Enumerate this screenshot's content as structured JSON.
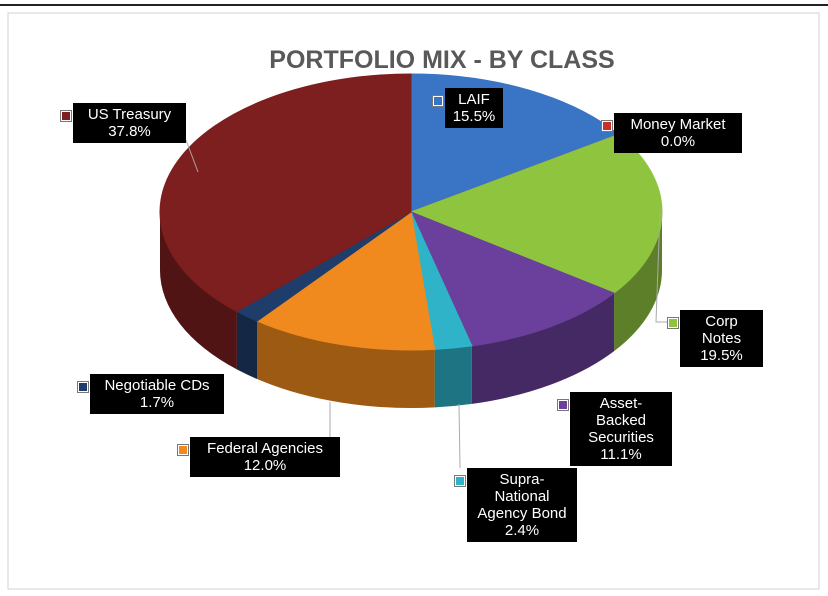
{
  "chart_data": {
    "type": "pie",
    "title": "PORTFOLIO MIX - BY CLASS",
    "categories": [
      "LAIF",
      "Money Market",
      "Corp Notes",
      "Asset-Backed Securities",
      "Supra-National Agency Bond",
      "Federal Agencies",
      "Negotiable CDs",
      "US Treasury"
    ],
    "values": [
      15.5,
      0.0,
      19.5,
      11.1,
      2.4,
      12.0,
      1.7,
      37.8
    ],
    "value_labels": [
      "15.5%",
      "0.0%",
      "19.5%",
      "11.1%",
      "2.4%",
      "12.0%",
      "1.7%",
      "37.8%"
    ],
    "colors": [
      "#3a74c4",
      "#c9302c",
      "#8fc43f",
      "#6b3f9c",
      "#2fb3c9",
      "#f08a1e",
      "#1f3d6b",
      "#7d1f1f"
    ]
  }
}
